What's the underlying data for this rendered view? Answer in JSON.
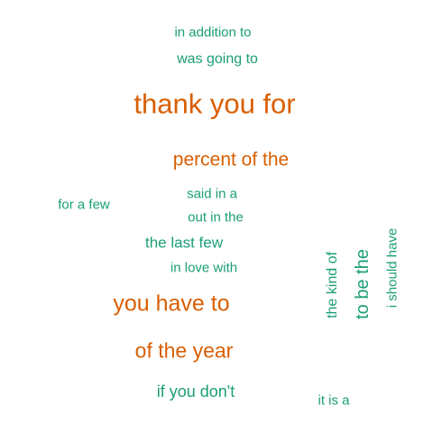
{
  "colors": {
    "primary": "#d95f02",
    "secondary": "#1b9e77",
    "background": "#ffffff"
  },
  "words": [
    {
      "text": "in addition to",
      "color": "secondary"
    },
    {
      "text": "was going to",
      "color": "secondary"
    },
    {
      "text": "thank you for",
      "color": "primary"
    },
    {
      "text": "percent of the",
      "color": "primary"
    },
    {
      "text": "said in a",
      "color": "secondary"
    },
    {
      "text": "for a few",
      "color": "secondary"
    },
    {
      "text": "out in the",
      "color": "secondary"
    },
    {
      "text": "the last few",
      "color": "secondary"
    },
    {
      "text": "in love with",
      "color": "secondary"
    },
    {
      "text": "you have to",
      "color": "primary"
    },
    {
      "text": "of the year",
      "color": "primary"
    },
    {
      "text": "if you don't",
      "color": "secondary"
    },
    {
      "text": "it is a",
      "color": "secondary"
    },
    {
      "text": "the kind of",
      "color": "secondary",
      "orientation": "vertical"
    },
    {
      "text": "to be the",
      "color": "secondary",
      "orientation": "vertical"
    },
    {
      "text": "i should have",
      "color": "secondary",
      "orientation": "vertical"
    }
  ]
}
